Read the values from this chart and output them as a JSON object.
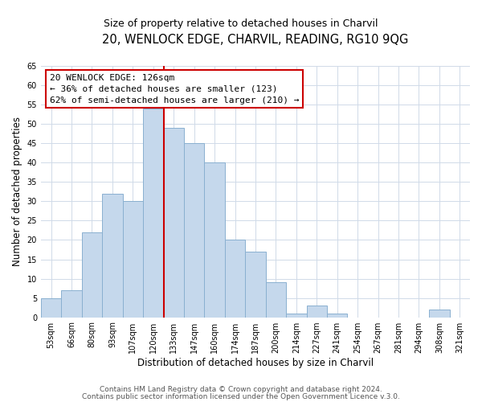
{
  "title": "20, WENLOCK EDGE, CHARVIL, READING, RG10 9QG",
  "subtitle": "Size of property relative to detached houses in Charvil",
  "xlabel": "Distribution of detached houses by size in Charvil",
  "ylabel": "Number of detached properties",
  "bar_labels": [
    "53sqm",
    "66sqm",
    "80sqm",
    "93sqm",
    "107sqm",
    "120sqm",
    "133sqm",
    "147sqm",
    "160sqm",
    "174sqm",
    "187sqm",
    "200sqm",
    "214sqm",
    "227sqm",
    "241sqm",
    "254sqm",
    "267sqm",
    "281sqm",
    "294sqm",
    "308sqm",
    "321sqm"
  ],
  "bar_values": [
    5,
    7,
    22,
    32,
    30,
    54,
    49,
    45,
    40,
    20,
    17,
    9,
    1,
    3,
    1,
    0,
    0,
    0,
    0,
    2,
    0
  ],
  "bar_color": "#c5d8ec",
  "bar_edge_color": "#8ab0d0",
  "ylim": [
    0,
    65
  ],
  "yticks": [
    0,
    5,
    10,
    15,
    20,
    25,
    30,
    35,
    40,
    45,
    50,
    55,
    60,
    65
  ],
  "vline_x": 5.5,
  "vline_color": "#cc0000",
  "annotation_title": "20 WENLOCK EDGE: 126sqm",
  "annotation_line1": "← 36% of detached houses are smaller (123)",
  "annotation_line2": "62% of semi-detached houses are larger (210) →",
  "annotation_box_color": "#ffffff",
  "annotation_box_edge": "#cc0000",
  "footer1": "Contains HM Land Registry data © Crown copyright and database right 2024.",
  "footer2": "Contains public sector information licensed under the Open Government Licence v.3.0.",
  "background_color": "#ffffff",
  "grid_color": "#d0dae8",
  "title_fontsize": 10.5,
  "subtitle_fontsize": 9,
  "axis_label_fontsize": 8.5,
  "tick_fontsize": 7,
  "annotation_fontsize": 8,
  "footer_fontsize": 6.5
}
